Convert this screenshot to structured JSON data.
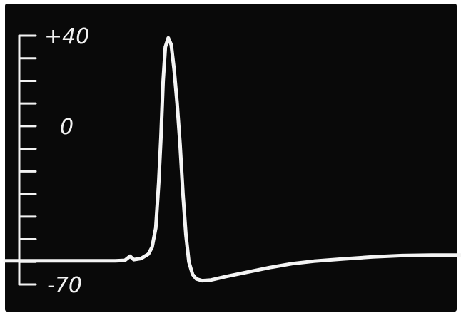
{
  "chart_data": {
    "type": "line",
    "title": "",
    "xlabel": "",
    "ylabel": "",
    "ylim": [
      -70,
      40
    ],
    "y_axis": {
      "ticks": [
        40,
        30,
        20,
        10,
        0,
        -10,
        -20,
        -30,
        -40,
        -50,
        -60,
        -70
      ],
      "labeled_ticks": [
        {
          "value": 40,
          "label": "+40"
        },
        {
          "value": 0,
          "label": "0"
        },
        {
          "value": -70,
          "label": "-70"
        }
      ]
    },
    "grid": false,
    "background": "#090909",
    "trace_color": "#f4f4f4",
    "series": [
      {
        "x": [
          0,
          60,
          110,
          150,
          163,
          170,
          175,
          185,
          195,
          200,
          205,
          209,
          212,
          215,
          218,
          222,
          226,
          230,
          234,
          238,
          242,
          246,
          250,
          255,
          260,
          268,
          280,
          300,
          330,
          360,
          390,
          420,
          460,
          500,
          540,
          580,
          620
        ],
        "y": [
          -59.5,
          -59.5,
          -59.5,
          -59.5,
          -59.3,
          -57.5,
          -59,
          -58.5,
          -56.5,
          -53.5,
          -45,
          -25,
          -5,
          20,
          35,
          39,
          36,
          25,
          10,
          -8,
          -30,
          -48,
          -60,
          -65.5,
          -67.5,
          -68.3,
          -68,
          -66.5,
          -64.5,
          -62.5,
          -60.8,
          -59.7,
          -58.7,
          -57.8,
          -57.2,
          -57,
          -57
        ]
      }
    ]
  }
}
